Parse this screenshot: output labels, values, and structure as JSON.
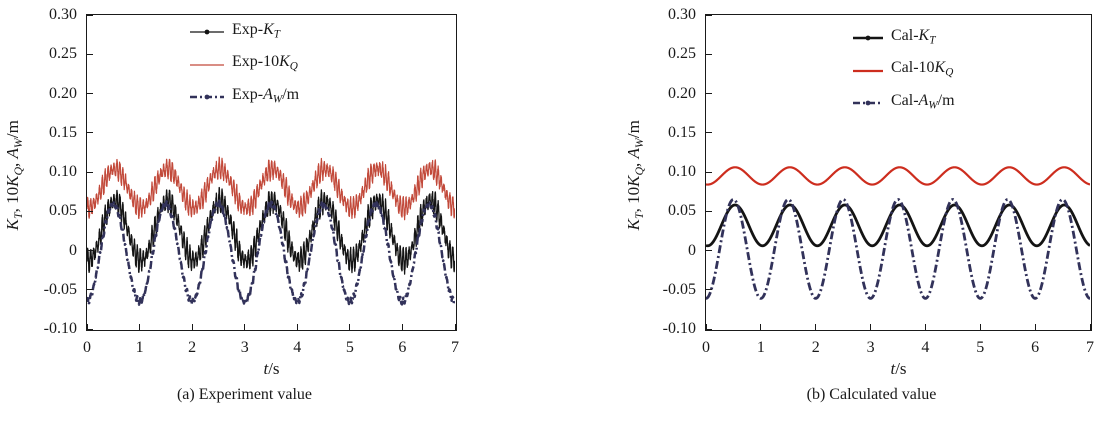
{
  "chart_data": [
    {
      "type": "line",
      "id": "experiment",
      "caption": "(a) Experiment value",
      "xlabel": [
        {
          "t": "t",
          "i": true
        },
        {
          "t": "/s"
        }
      ],
      "ylabel": [
        {
          "t": "K",
          "i": true
        },
        {
          "t": "T",
          "i": true,
          "s": true
        },
        {
          "t": ", 10"
        },
        {
          "t": "K",
          "i": true
        },
        {
          "t": "Q",
          "i": true,
          "s": true
        },
        {
          "t": ", "
        },
        {
          "t": "A",
          "i": true
        },
        {
          "t": "W",
          "i": true,
          "s": true
        },
        {
          "t": "/m"
        }
      ],
      "xlim": [
        0,
        7
      ],
      "ylim": [
        -0.1,
        0.3
      ],
      "xticks": [
        "0",
        "1",
        "2",
        "3",
        "4",
        "5",
        "6",
        "7"
      ],
      "yticks": [
        "-0.10",
        "-0.05",
        "0",
        "0.05",
        "0.10",
        "0.15",
        "0.20",
        "0.25",
        "0.30"
      ],
      "grid": false,
      "legend_position": "upper-center-inside",
      "legend": [
        {
          "label": [
            {
              "t": "Exp-"
            },
            {
              "t": "K",
              "i": true
            },
            {
              "t": "T",
              "i": true,
              "s": true
            }
          ],
          "marker": true
        },
        {
          "label": [
            {
              "t": "Exp-10"
            },
            {
              "t": "K",
              "i": true
            },
            {
              "t": "Q",
              "i": true,
              "s": true
            }
          ],
          "marker": false
        },
        {
          "label": [
            {
              "t": "Exp-"
            },
            {
              "t": "A",
              "i": true
            },
            {
              "t": "W",
              "i": true,
              "s": true
            },
            {
              "t": "/m"
            }
          ],
          "marker": true
        }
      ],
      "series": [
        {
          "name": "Exp-KT",
          "color": "#141414",
          "line": "solid",
          "width": 1.3,
          "wave": {
            "mean": 0.025,
            "amplitude": 0.038,
            "period_s": 1.0,
            "phase": 0.28,
            "noise_amp": 0.015,
            "noise_freq": 18
          }
        },
        {
          "name": "Exp-10KQ",
          "color": "#c2493a",
          "line": "solid",
          "width": 1.2,
          "wave": {
            "mean": 0.079,
            "amplitude": 0.025,
            "period_s": 1.0,
            "phase": 0.28,
            "noise_amp": 0.013,
            "noise_freq": 18
          }
        },
        {
          "name": "Exp-AW",
          "color": "#32325a",
          "line": "dashdot",
          "width": 2.5,
          "wave": {
            "mean": -0.003,
            "amplitude": 0.062,
            "period_s": 1.0,
            "phase": 0.25,
            "noise_amp": 0.004,
            "noise_freq": 18
          }
        }
      ]
    },
    {
      "type": "line",
      "id": "calculated",
      "caption": "(b) Calculated value",
      "xlabel": [
        {
          "t": "t",
          "i": true
        },
        {
          "t": "/s"
        }
      ],
      "ylabel": [
        {
          "t": "K",
          "i": true
        },
        {
          "t": "T",
          "i": true,
          "s": true
        },
        {
          "t": ", 10"
        },
        {
          "t": "K",
          "i": true
        },
        {
          "t": "Q",
          "i": true,
          "s": true
        },
        {
          "t": ", "
        },
        {
          "t": "A",
          "i": true
        },
        {
          "t": "W",
          "i": true,
          "s": true
        },
        {
          "t": "/m"
        }
      ],
      "xlim": [
        0,
        7
      ],
      "ylim": [
        -0.1,
        0.3
      ],
      "xticks": [
        "0",
        "1",
        "2",
        "3",
        "4",
        "5",
        "6",
        "7"
      ],
      "yticks": [
        "-0.10",
        "-0.05",
        "0",
        "0.05",
        "0.10",
        "0.15",
        "0.20",
        "0.25",
        "0.30"
      ],
      "grid": false,
      "legend_position": "upper-center-inside",
      "legend": [
        {
          "label": [
            {
              "t": "Cal-"
            },
            {
              "t": "K",
              "i": true
            },
            {
              "t": "T",
              "i": true,
              "s": true
            }
          ],
          "marker": true
        },
        {
          "label": [
            {
              "t": "Cal-10"
            },
            {
              "t": "K",
              "i": true
            },
            {
              "t": "Q",
              "i": true,
              "s": true
            }
          ],
          "marker": false
        },
        {
          "label": [
            {
              "t": "Cal-"
            },
            {
              "t": "A",
              "i": true
            },
            {
              "t": "W",
              "i": true,
              "s": true
            },
            {
              "t": "/m"
            }
          ],
          "marker": true
        }
      ],
      "series": [
        {
          "name": "Cal-KT",
          "color": "#141414",
          "line": "solid",
          "width": 2.8,
          "wave": {
            "mean": 0.032,
            "amplitude": 0.026,
            "period_s": 1.0,
            "phase": 0.28,
            "noise_amp": 0,
            "noise_freq": 0
          }
        },
        {
          "name": "Cal-10KQ",
          "color": "#cd2d1e",
          "line": "solid",
          "width": 2.2,
          "wave": {
            "mean": 0.095,
            "amplitude": 0.011,
            "period_s": 1.0,
            "phase": 0.28,
            "noise_amp": 0,
            "noise_freq": 0
          }
        },
        {
          "name": "Cal-AW",
          "color": "#32325a",
          "line": "dashdot",
          "width": 2.8,
          "wave": {
            "mean": 0.002,
            "amplitude": 0.063,
            "period_s": 1.0,
            "phase": 0.25,
            "noise_amp": 0,
            "noise_freq": 0
          }
        }
      ]
    }
  ]
}
